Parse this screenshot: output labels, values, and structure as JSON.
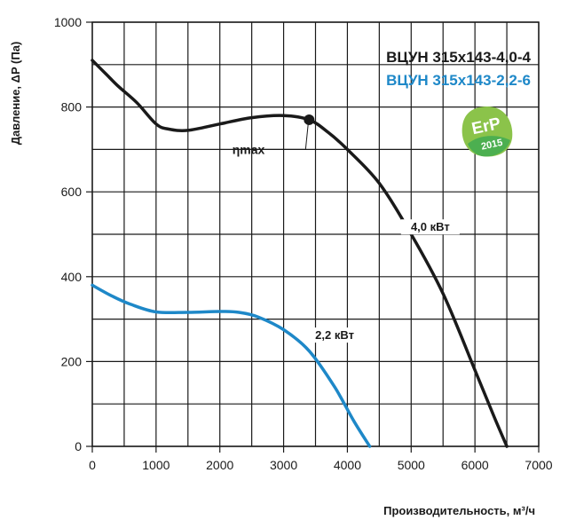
{
  "chart_data": {
    "type": "line",
    "xlabel": "Производительность, м³/ч",
    "ylabel": "Давление, ΔP (Па)",
    "xlim": [
      0,
      7000
    ],
    "ylim": [
      0,
      1000
    ],
    "x_ticks": [
      "0",
      "1000",
      "2000",
      "3000",
      "4000",
      "5000",
      "6000",
      "7000"
    ],
    "y_ticks": [
      "0",
      "200",
      "400",
      "600",
      "800",
      "1000"
    ],
    "grid": true,
    "legend_position": "top-right",
    "series": [
      {
        "name": "ВЦУН 315х143-4,0-4",
        "color": "#1a1a1a",
        "label": "4,0 кВт",
        "points": [
          [
            0,
            910
          ],
          [
            200,
            880
          ],
          [
            400,
            850
          ],
          [
            700,
            810
          ],
          [
            1000,
            760
          ],
          [
            1200,
            748
          ],
          [
            1500,
            745
          ],
          [
            2000,
            760
          ],
          [
            2500,
            775
          ],
          [
            3000,
            780
          ],
          [
            3400,
            770
          ],
          [
            3700,
            740
          ],
          [
            4000,
            700
          ],
          [
            4500,
            620
          ],
          [
            5000,
            500
          ],
          [
            5500,
            360
          ],
          [
            6000,
            180
          ],
          [
            6300,
            70
          ],
          [
            6500,
            0
          ]
        ]
      },
      {
        "name": "ВЦУН 315х143-2,2-6",
        "color": "#1e88c8",
        "label": "2,2 кВт",
        "points": [
          [
            0,
            380
          ],
          [
            300,
            355
          ],
          [
            600,
            335
          ],
          [
            1000,
            317
          ],
          [
            1500,
            316
          ],
          [
            2000,
            318
          ],
          [
            2300,
            316
          ],
          [
            2600,
            305
          ],
          [
            3000,
            275
          ],
          [
            3400,
            225
          ],
          [
            3800,
            140
          ],
          [
            4100,
            60
          ],
          [
            4350,
            0
          ]
        ]
      }
    ],
    "annotations": {
      "eta_label": "ηmax",
      "eta_point": [
        3400,
        770
      ],
      "series_label_points": [
        [
          5300,
          510
        ],
        [
          3800,
          255
        ]
      ]
    }
  },
  "badge": {
    "logo_text": "ErP",
    "year": "2015",
    "colors": [
      "#4caf50",
      "#8bc34a"
    ]
  }
}
